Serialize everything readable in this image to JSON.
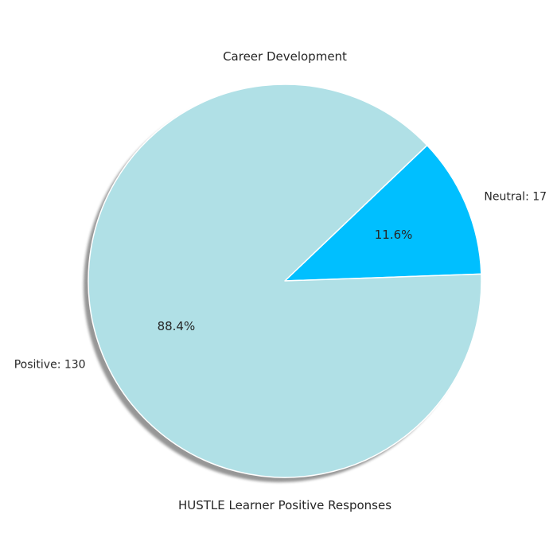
{
  "chart_data": {
    "type": "pie",
    "title": "Career Development",
    "xlabel": "HUSTLE Learner Positive Responses",
    "slices": [
      {
        "label": "Neutral: 17",
        "value": 17,
        "percent_label": "11.6%",
        "color": "#00bfff"
      },
      {
        "label": "Positive: 130",
        "value": 130,
        "percent_label": "88.4%",
        "color": "#b0e0e6"
      }
    ],
    "start_angle_deg": 2,
    "shadow": true,
    "slice_edge_color": "#ffffff"
  }
}
